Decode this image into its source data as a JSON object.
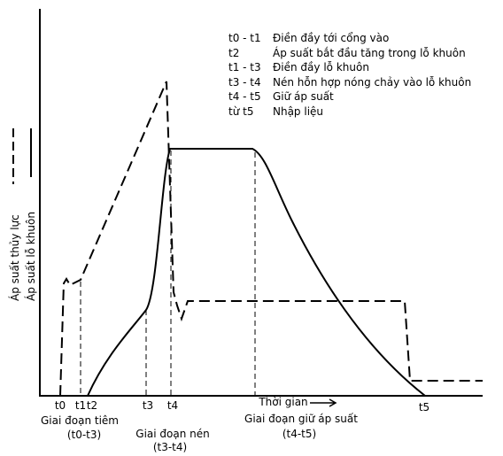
{
  "axes": {
    "y_labels": [
      "Áp suất thủy lực",
      "Áp suất lỗ khuôn"
    ],
    "x_label": "Thời gian"
  },
  "legend": [
    {
      "key": "t0 - t1",
      "text": "Điền đầy tới cổng vào"
    },
    {
      "key": "t2",
      "text": "Áp suất bắt đầu tăng trong lỗ khuôn"
    },
    {
      "key": "t1 - t3",
      "text": "Điền đầy lỗ khuôn"
    },
    {
      "key": "t3 - t4",
      "text": "Nén hỗn hợp nóng chảy vào lỗ khuôn"
    },
    {
      "key": "t4 - t5",
      "text": "Giữ áp suất"
    },
    {
      "key": "từ t5",
      "text": "Nhập liệu"
    }
  ],
  "time_marks": [
    "t0",
    "t1",
    "t2",
    "t3",
    "t4",
    "t5"
  ],
  "phases": [
    {
      "name": "Giai đoạn tiêm",
      "range": "(t0-t3)"
    },
    {
      "name": "Giai đoạn nén",
      "range": "(t3-t4)"
    },
    {
      "name": "Giai đoạn giữ áp suất",
      "range": "(t4-t5)"
    }
  ]
}
